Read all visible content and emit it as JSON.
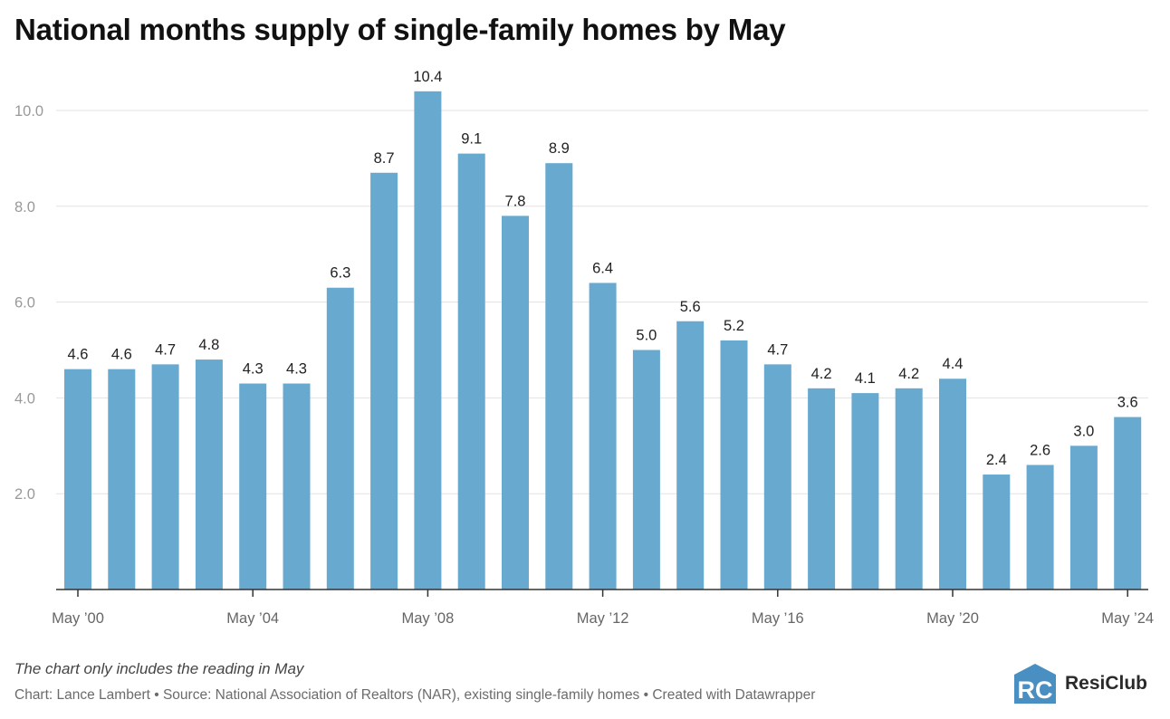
{
  "title": "National months supply of single-family homes by May",
  "notes": "The chart only includes the reading in May",
  "credits": "Chart: Lance Lambert • Source: National Association of Realtors (NAR), existing single-family homes • Created with Datawrapper",
  "logo": {
    "mark_text": "RC",
    "name": "ResiClub"
  },
  "colors": {
    "bar": "#67a9cf",
    "grid": "#e2e2e2",
    "axis": "#333333",
    "tick_text": "#999999",
    "label_text": "#222222"
  },
  "chart_data": {
    "type": "bar",
    "title": "National months supply of single-family homes by May",
    "xlabel": "",
    "ylabel": "",
    "ylim": [
      0,
      11
    ],
    "yticks": [
      2,
      4,
      6,
      8,
      10
    ],
    "ytick_labels": [
      "2.0",
      "4.0",
      "6.0",
      "8.0",
      "10.0"
    ],
    "grid": true,
    "categories": [
      "May 2000",
      "May 2001",
      "May 2002",
      "May 2003",
      "May 2004",
      "May 2005",
      "May 2006",
      "May 2007",
      "May 2008",
      "May 2009",
      "May 2010",
      "May 2011",
      "May 2012",
      "May 2013",
      "May 2014",
      "May 2015",
      "May 2016",
      "May 2017",
      "May 2018",
      "May 2019",
      "May 2020",
      "May 2021",
      "May 2022",
      "May 2023",
      "May 2024"
    ],
    "values": [
      4.6,
      4.6,
      4.7,
      4.8,
      4.3,
      4.3,
      6.3,
      8.7,
      10.4,
      9.1,
      7.8,
      8.9,
      6.4,
      5.0,
      5.6,
      5.2,
      4.7,
      4.2,
      4.1,
      4.2,
      4.4,
      2.4,
      2.6,
      3.0,
      3.6
    ],
    "value_labels": [
      "4.6",
      "4.6",
      "4.7",
      "4.8",
      "4.3",
      "4.3",
      "6.3",
      "8.7",
      "10.4",
      "9.1",
      "7.8",
      "8.9",
      "6.4",
      "5.0",
      "5.6",
      "5.2",
      "4.7",
      "4.2",
      "4.1",
      "4.2",
      "4.4",
      "2.4",
      "2.6",
      "3.0",
      "3.6"
    ],
    "xtick_labels": [
      {
        "index": 0,
        "label": "May ’00"
      },
      {
        "index": 4,
        "label": "May ’04"
      },
      {
        "index": 8,
        "label": "May ’08"
      },
      {
        "index": 12,
        "label": "May ’12"
      },
      {
        "index": 16,
        "label": "May ’16"
      },
      {
        "index": 20,
        "label": "May ’20"
      },
      {
        "index": 24,
        "label": "May ’24"
      }
    ]
  }
}
